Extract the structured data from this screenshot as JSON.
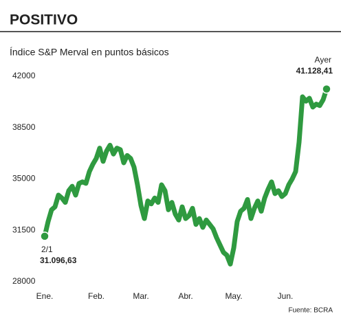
{
  "chart_data": {
    "type": "line",
    "title": "POSITIVO",
    "subtitle": "Índice S&P Merval en puntos básicos",
    "source": "Fuente: BCRA",
    "annotations": [
      "2/1",
      "Ayer"
    ],
    "categories": [
      "Ene.",
      null,
      null,
      null,
      null,
      null,
      null,
      null,
      null,
      null,
      null,
      null,
      null,
      null,
      null,
      "Feb.",
      null,
      null,
      null,
      null,
      null,
      null,
      null,
      null,
      null,
      null,
      null,
      null,
      "Mar.",
      null,
      null,
      null,
      null,
      null,
      null,
      null,
      null,
      null,
      null,
      null,
      null,
      "Abr.",
      null,
      null,
      null,
      null,
      null,
      null,
      null,
      null,
      null,
      null,
      null,
      null,
      null,
      "May.",
      null,
      null,
      null,
      null,
      null,
      null,
      null,
      null,
      null,
      null,
      null,
      null,
      null,
      null,
      "Jun.",
      null,
      null,
      null,
      null,
      null,
      null,
      null,
      null,
      null,
      null,
      null,
      null
    ],
    "values": [
      31096.63,
      32100,
      32900,
      33100,
      33900,
      33700,
      33400,
      34200,
      34500,
      33900,
      34700,
      34800,
      34700,
      35500,
      36000,
      36400,
      37100,
      36200,
      36900,
      37300,
      36700,
      37100,
      37000,
      36100,
      36600,
      36400,
      35800,
      34600,
      33200,
      32300,
      33500,
      33300,
      33700,
      33400,
      34600,
      34200,
      32900,
      33400,
      32600,
      32200,
      33100,
      32300,
      32500,
      33000,
      31900,
      32300,
      31700,
      32200,
      31900,
      31600,
      31000,
      30500,
      30000,
      29800,
      29200,
      30300,
      32100,
      32800,
      33000,
      33600,
      32300,
      33000,
      33500,
      32800,
      33700,
      34300,
      34800,
      34000,
      34200,
      33800,
      34000,
      34600,
      35000,
      35500,
      37500,
      40600,
      40300,
      40500,
      39900,
      40100,
      40000,
      40400,
      41128.41
    ],
    "value_labels": [
      "31.096,63",
      null,
      null,
      null,
      null,
      null,
      null,
      null,
      null,
      null,
      null,
      null,
      null,
      null,
      null,
      null,
      null,
      null,
      null,
      null,
      null,
      null,
      null,
      null,
      null,
      null,
      null,
      null,
      null,
      null,
      null,
      null,
      null,
      null,
      null,
      null,
      null,
      null,
      null,
      null,
      null,
      null,
      null,
      null,
      null,
      null,
      null,
      null,
      null,
      null,
      null,
      null,
      null,
      null,
      null,
      null,
      null,
      null,
      null,
      null,
      null,
      null,
      null,
      null,
      null,
      null,
      null,
      null,
      null,
      null,
      null,
      null,
      null,
      null,
      null,
      null,
      null,
      null,
      null,
      null,
      null,
      null,
      "41.128,41"
    ],
    "color": "#2f9a40",
    "ylim": [
      28000,
      42000
    ],
    "yticks": [
      28000,
      31500,
      35000,
      38500,
      42000
    ],
    "grid": false
  }
}
